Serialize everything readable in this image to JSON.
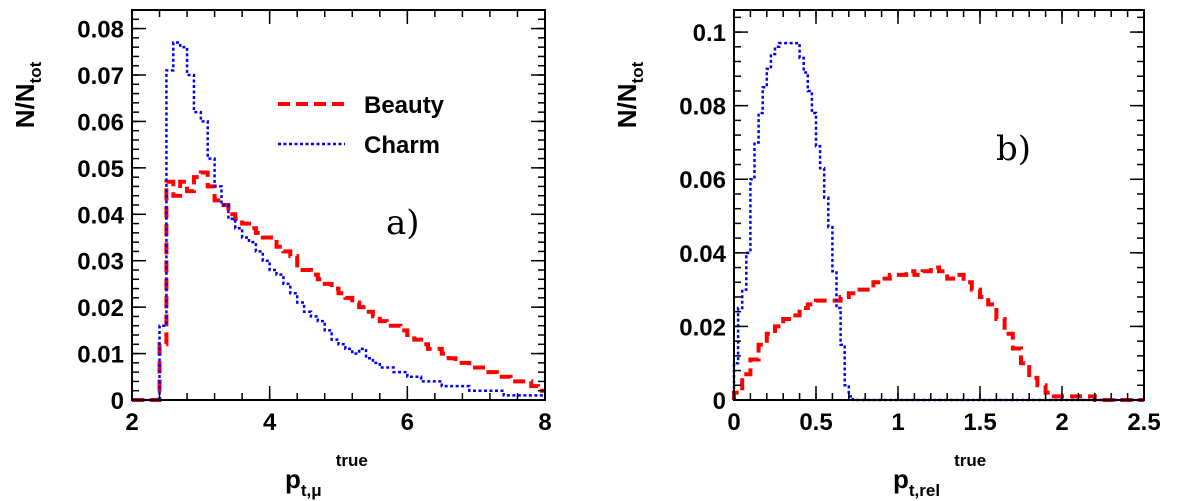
{
  "chart_data": [
    {
      "type": "histogram",
      "panel_tag": "a)",
      "xlabel": {
        "main": "p",
        "sub": "t,μ",
        "sup": "true"
      },
      "ylabel": {
        "main": "N/N",
        "sub": "tot"
      },
      "xlim": [
        2,
        8
      ],
      "ylim": [
        0,
        0.084
      ],
      "xticks": [
        2,
        4,
        6,
        8
      ],
      "xtick_labels": [
        "2",
        "4",
        "6",
        "8"
      ],
      "yticks": [
        0,
        0.01,
        0.02,
        0.03,
        0.04,
        0.05,
        0.06,
        0.07,
        0.08
      ],
      "ytick_labels": [
        "0",
        "0.01",
        "0.02",
        "0.03",
        "0.04",
        "0.05",
        "0.06",
        "0.07",
        "0.08"
      ],
      "legend": {
        "position": "top-right"
      },
      "series": [
        {
          "name": "Beauty",
          "color": "#ff0000",
          "style": "dashed",
          "bin_edges_start": 2.0,
          "bin_width": 0.1,
          "values": [
            0,
            0,
            0,
            0,
            0.012,
            0.047,
            0.044,
            0.047,
            0.045,
            0.048,
            0.049,
            0.046,
            0.043,
            0.042,
            0.04,
            0.039,
            0.038,
            0.037,
            0.036,
            0.035,
            0.035,
            0.033,
            0.032,
            0.031,
            0.028,
            0.028,
            0.027,
            0.026,
            0.025,
            0.024,
            0.023,
            0.022,
            0.021,
            0.02,
            0.019,
            0.018,
            0.017,
            0.016,
            0.016,
            0.015,
            0.014,
            0.013,
            0.012,
            0.011,
            0.011,
            0.01,
            0.009,
            0.008,
            0.008,
            0.007,
            0.007,
            0.006,
            0.006,
            0.005,
            0.005,
            0.004,
            0.004,
            0.004,
            0.003,
            0.002
          ]
        },
        {
          "name": "Charm",
          "color": "#0000ff",
          "style": "dotted",
          "bin_edges_start": 2.0,
          "bin_width": 0.1,
          "values": [
            0,
            0,
            0,
            0,
            0.016,
            0.071,
            0.077,
            0.076,
            0.07,
            0.062,
            0.06,
            0.052,
            0.046,
            0.042,
            0.039,
            0.037,
            0.035,
            0.034,
            0.032,
            0.03,
            0.028,
            0.027,
            0.025,
            0.023,
            0.021,
            0.019,
            0.018,
            0.017,
            0.015,
            0.013,
            0.012,
            0.011,
            0.01,
            0.011,
            0.009,
            0.008,
            0.007,
            0.007,
            0.006,
            0.006,
            0.005,
            0.005,
            0.004,
            0.004,
            0.004,
            0.003,
            0.003,
            0.003,
            0.003,
            0.002,
            0.002,
            0.002,
            0.002,
            0.002,
            0.001,
            0.001,
            0.001,
            0.001,
            0.001,
            0.001
          ]
        }
      ]
    },
    {
      "type": "histogram",
      "panel_tag": "b)",
      "xlabel": {
        "main": "p",
        "sub": "t,rel",
        "sup": "true"
      },
      "ylabel": {
        "main": "N/N",
        "sub": "tot"
      },
      "xlim": [
        0,
        2.5
      ],
      "ylim": [
        0,
        0.106
      ],
      "xticks": [
        0,
        0.5,
        1,
        1.5,
        2,
        2.5
      ],
      "xtick_labels": [
        "0",
        "0.5",
        "1",
        "1.5",
        "2",
        "2.5"
      ],
      "yticks": [
        0,
        0.02,
        0.04,
        0.06,
        0.08,
        0.1
      ],
      "ytick_labels": [
        "0",
        "0.02",
        "0.04",
        "0.06",
        "0.08",
        "0.1"
      ],
      "series": [
        {
          "name": "Beauty",
          "color": "#ff0000",
          "style": "dashed",
          "bin_edges_start": 0.0,
          "bin_width": 0.05,
          "values": [
            0.002,
            0.007,
            0.011,
            0.015,
            0.018,
            0.02,
            0.022,
            0.023,
            0.025,
            0.026,
            0.027,
            0.027,
            0.027,
            0.028,
            0.029,
            0.03,
            0.03,
            0.032,
            0.033,
            0.034,
            0.034,
            0.035,
            0.034,
            0.035,
            0.036,
            0.035,
            0.033,
            0.034,
            0.032,
            0.03,
            0.028,
            0.026,
            0.022,
            0.018,
            0.014,
            0.01,
            0.006,
            0.004,
            0.002,
            0.001,
            0.001,
            0.001,
            0.001,
            0.001,
            0.0,
            0.0,
            0.0,
            0.0,
            0.0,
            0.0
          ]
        },
        {
          "name": "Charm",
          "color": "#0000ff",
          "style": "dotted",
          "bin_edges_start": 0.0,
          "bin_width": 0.025,
          "values": [
            0.01,
            0.025,
            0.03,
            0.04,
            0.06,
            0.07,
            0.078,
            0.085,
            0.09,
            0.094,
            0.096,
            0.097,
            0.097,
            0.097,
            0.097,
            0.097,
            0.093,
            0.089,
            0.084,
            0.078,
            0.069,
            0.063,
            0.055,
            0.047,
            0.035,
            0.025,
            0.015,
            0.004,
            0.001,
            0.0,
            0.0,
            0.0,
            0.0,
            0.0,
            0.0,
            0.0,
            0.0,
            0.0,
            0.0,
            0.0,
            0.0,
            0.0,
            0.0,
            0.0,
            0.0,
            0.0,
            0.0,
            0.0,
            0.0,
            0.0,
            0.0,
            0.0,
            0.0,
            0.0,
            0.0,
            0.0,
            0.0,
            0.0,
            0.0,
            0.0,
            0.0,
            0.0,
            0.0,
            0.0,
            0.0,
            0.0,
            0.0,
            0.0,
            0.0,
            0.0,
            0.0,
            0.0,
            0.0,
            0.0,
            0.0,
            0.0,
            0.0,
            0.0,
            0.0,
            0.0,
            0.0,
            0.0,
            0.0,
            0.0,
            0.0,
            0.0,
            0.0,
            0.0,
            0.0,
            0.0,
            0.0,
            0.0,
            0.0,
            0.0,
            0.0,
            0.0,
            0.0,
            0.0,
            0.0,
            0.0
          ]
        }
      ]
    }
  ]
}
